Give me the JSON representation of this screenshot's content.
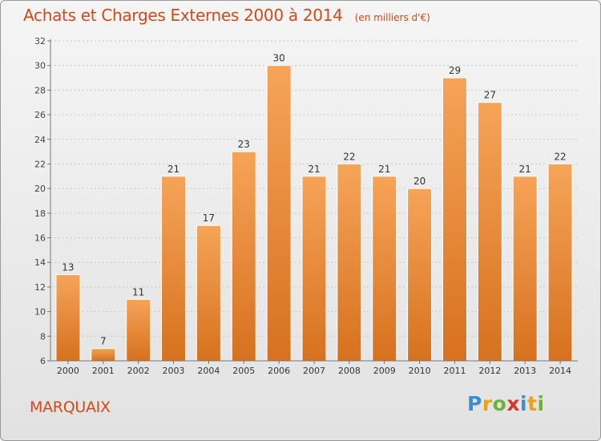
{
  "title": "Achats et Charges Externes 2000 à 2014",
  "unit": "(en milliers d'€)",
  "commune": "MARQUAIX",
  "brand": {
    "letters": [
      "P",
      "r",
      "o",
      "x",
      "i",
      "t",
      "i"
    ],
    "colors": [
      "#3a8fd0",
      "#e8a21c",
      "#6fb13a",
      "#d9342b",
      "#3a8fd0",
      "#e8a21c",
      "#6fb13a"
    ]
  },
  "colors": {
    "bar": "#f0954a",
    "text_accent": "#d14a1c"
  },
  "chart_data": {
    "type": "bar",
    "categories": [
      "2000",
      "2001",
      "2002",
      "2003",
      "2004",
      "2005",
      "2006",
      "2007",
      "2008",
      "2009",
      "2010",
      "2011",
      "2012",
      "2013",
      "2014"
    ],
    "values": [
      13,
      7,
      11,
      21,
      17,
      23,
      30,
      21,
      22,
      21,
      20,
      29,
      27,
      21,
      22
    ],
    "data_labels": [
      "13",
      "7",
      "11",
      "21",
      "17",
      "23",
      "30",
      "21",
      "22",
      "21",
      "20",
      "29",
      "27",
      "21",
      "22"
    ],
    "ylim": [
      6,
      32
    ],
    "yticks": [
      6,
      8,
      10,
      12,
      14,
      16,
      18,
      20,
      22,
      24,
      26,
      28,
      30,
      32
    ],
    "ytick_labels": [
      "6",
      "8",
      "10",
      "12",
      "14",
      "16",
      "18",
      "20",
      "22",
      "24",
      "26",
      "28",
      "30",
      "32"
    ],
    "grid": true
  }
}
